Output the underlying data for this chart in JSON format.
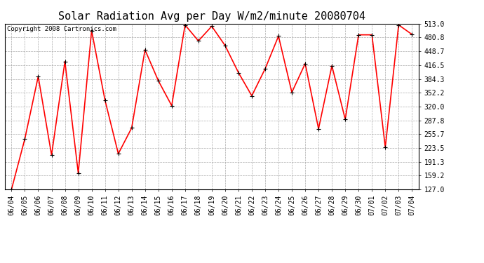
{
  "title": "Solar Radiation Avg per Day W/m2/minute 20080704",
  "copyright": "Copyright 2008 Cartronics.com",
  "labels": [
    "06/04",
    "06/05",
    "06/06",
    "06/07",
    "06/08",
    "06/09",
    "06/10",
    "06/11",
    "06/12",
    "06/13",
    "06/14",
    "06/15",
    "06/16",
    "06/17",
    "06/18",
    "06/19",
    "06/20",
    "06/21",
    "06/22",
    "06/23",
    "06/24",
    "06/25",
    "06/26",
    "06/27",
    "06/28",
    "06/29",
    "06/30",
    "07/01",
    "07/02",
    "07/03",
    "07/04"
  ],
  "values": [
    127.0,
    245.0,
    390.0,
    207.0,
    425.0,
    165.0,
    497.0,
    335.0,
    210.0,
    270.0,
    452.0,
    380.0,
    322.0,
    510.0,
    473.0,
    507.0,
    462.0,
    399.0,
    345.0,
    408.0,
    484.0,
    353.0,
    420.0,
    268.0,
    415.0,
    290.0,
    487.0,
    487.0,
    225.0,
    510.0,
    488.0
  ],
  "ymin": 127.0,
  "ymax": 513.0,
  "yticks": [
    127.0,
    159.2,
    191.3,
    223.5,
    255.7,
    287.8,
    320.0,
    352.2,
    384.3,
    416.5,
    448.7,
    480.8,
    513.0
  ],
  "ytick_labels": [
    "127.0",
    "159.2",
    "191.3",
    "223.5",
    "255.7",
    "287.8",
    "320.0",
    "352.2",
    "384.3",
    "416.5",
    "448.7",
    "480.8",
    "513.0"
  ],
  "line_color": "#ff0000",
  "marker_color": "#000000",
  "bg_color": "#ffffff",
  "grid_color": "#aaaaaa",
  "title_fontsize": 11,
  "tick_fontsize": 7,
  "copyright_fontsize": 6.5
}
